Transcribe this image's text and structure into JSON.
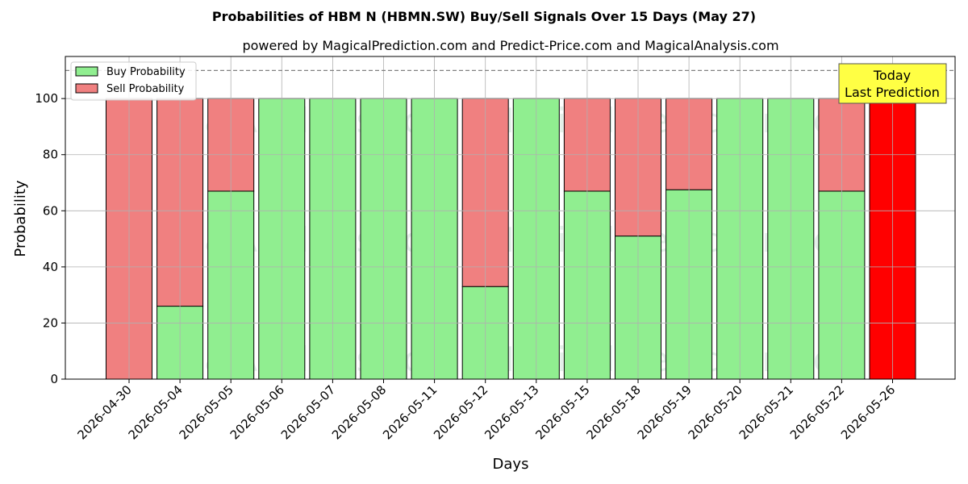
{
  "chart_data": {
    "type": "bar",
    "stacked": true,
    "title": "Probabilities of HBM N (HBMN.SW) Buy/Sell Signals Over 15 Days (May 27)",
    "subtitle": "powered by MagicalPrediction.com and Predict-Price.com and MagicalAnalysis.com",
    "xlabel": "Days",
    "ylabel": "Probability",
    "ylim": [
      0,
      115
    ],
    "yticks": [
      0,
      20,
      40,
      60,
      80,
      100
    ],
    "reference_line": 110,
    "grid": true,
    "legend_position": "top-left",
    "categories": [
      "2026-04-30",
      "2026-05-04",
      "2026-05-05",
      "2026-05-06",
      "2026-05-07",
      "2026-05-08",
      "2026-05-11",
      "2026-05-12",
      "2026-05-13",
      "2026-05-15",
      "2026-05-18",
      "2026-05-19",
      "2026-05-20",
      "2026-05-21",
      "2026-05-22",
      "2026-05-26"
    ],
    "series": [
      {
        "name": "Buy Probability",
        "color": "#90ee90",
        "values": [
          0,
          26,
          67,
          100,
          100,
          100,
          100,
          33,
          100,
          67,
          51,
          67.5,
          100,
          100,
          67,
          0
        ]
      },
      {
        "name": "Sell Probability",
        "color": "#f08080",
        "values": [
          100,
          74,
          33,
          0,
          0,
          0,
          0,
          67,
          0,
          33,
          49,
          32.5,
          0,
          0,
          33,
          100
        ]
      }
    ],
    "highlight": {
      "category": "2026-05-26",
      "color": "#ff0000"
    },
    "annotation": {
      "line1": "Today",
      "line2": "Last Prediction",
      "background": "#ffff44"
    },
    "watermarks": [
      "MagicalAnalysis.com",
      "MagicalPrediction.com"
    ]
  }
}
